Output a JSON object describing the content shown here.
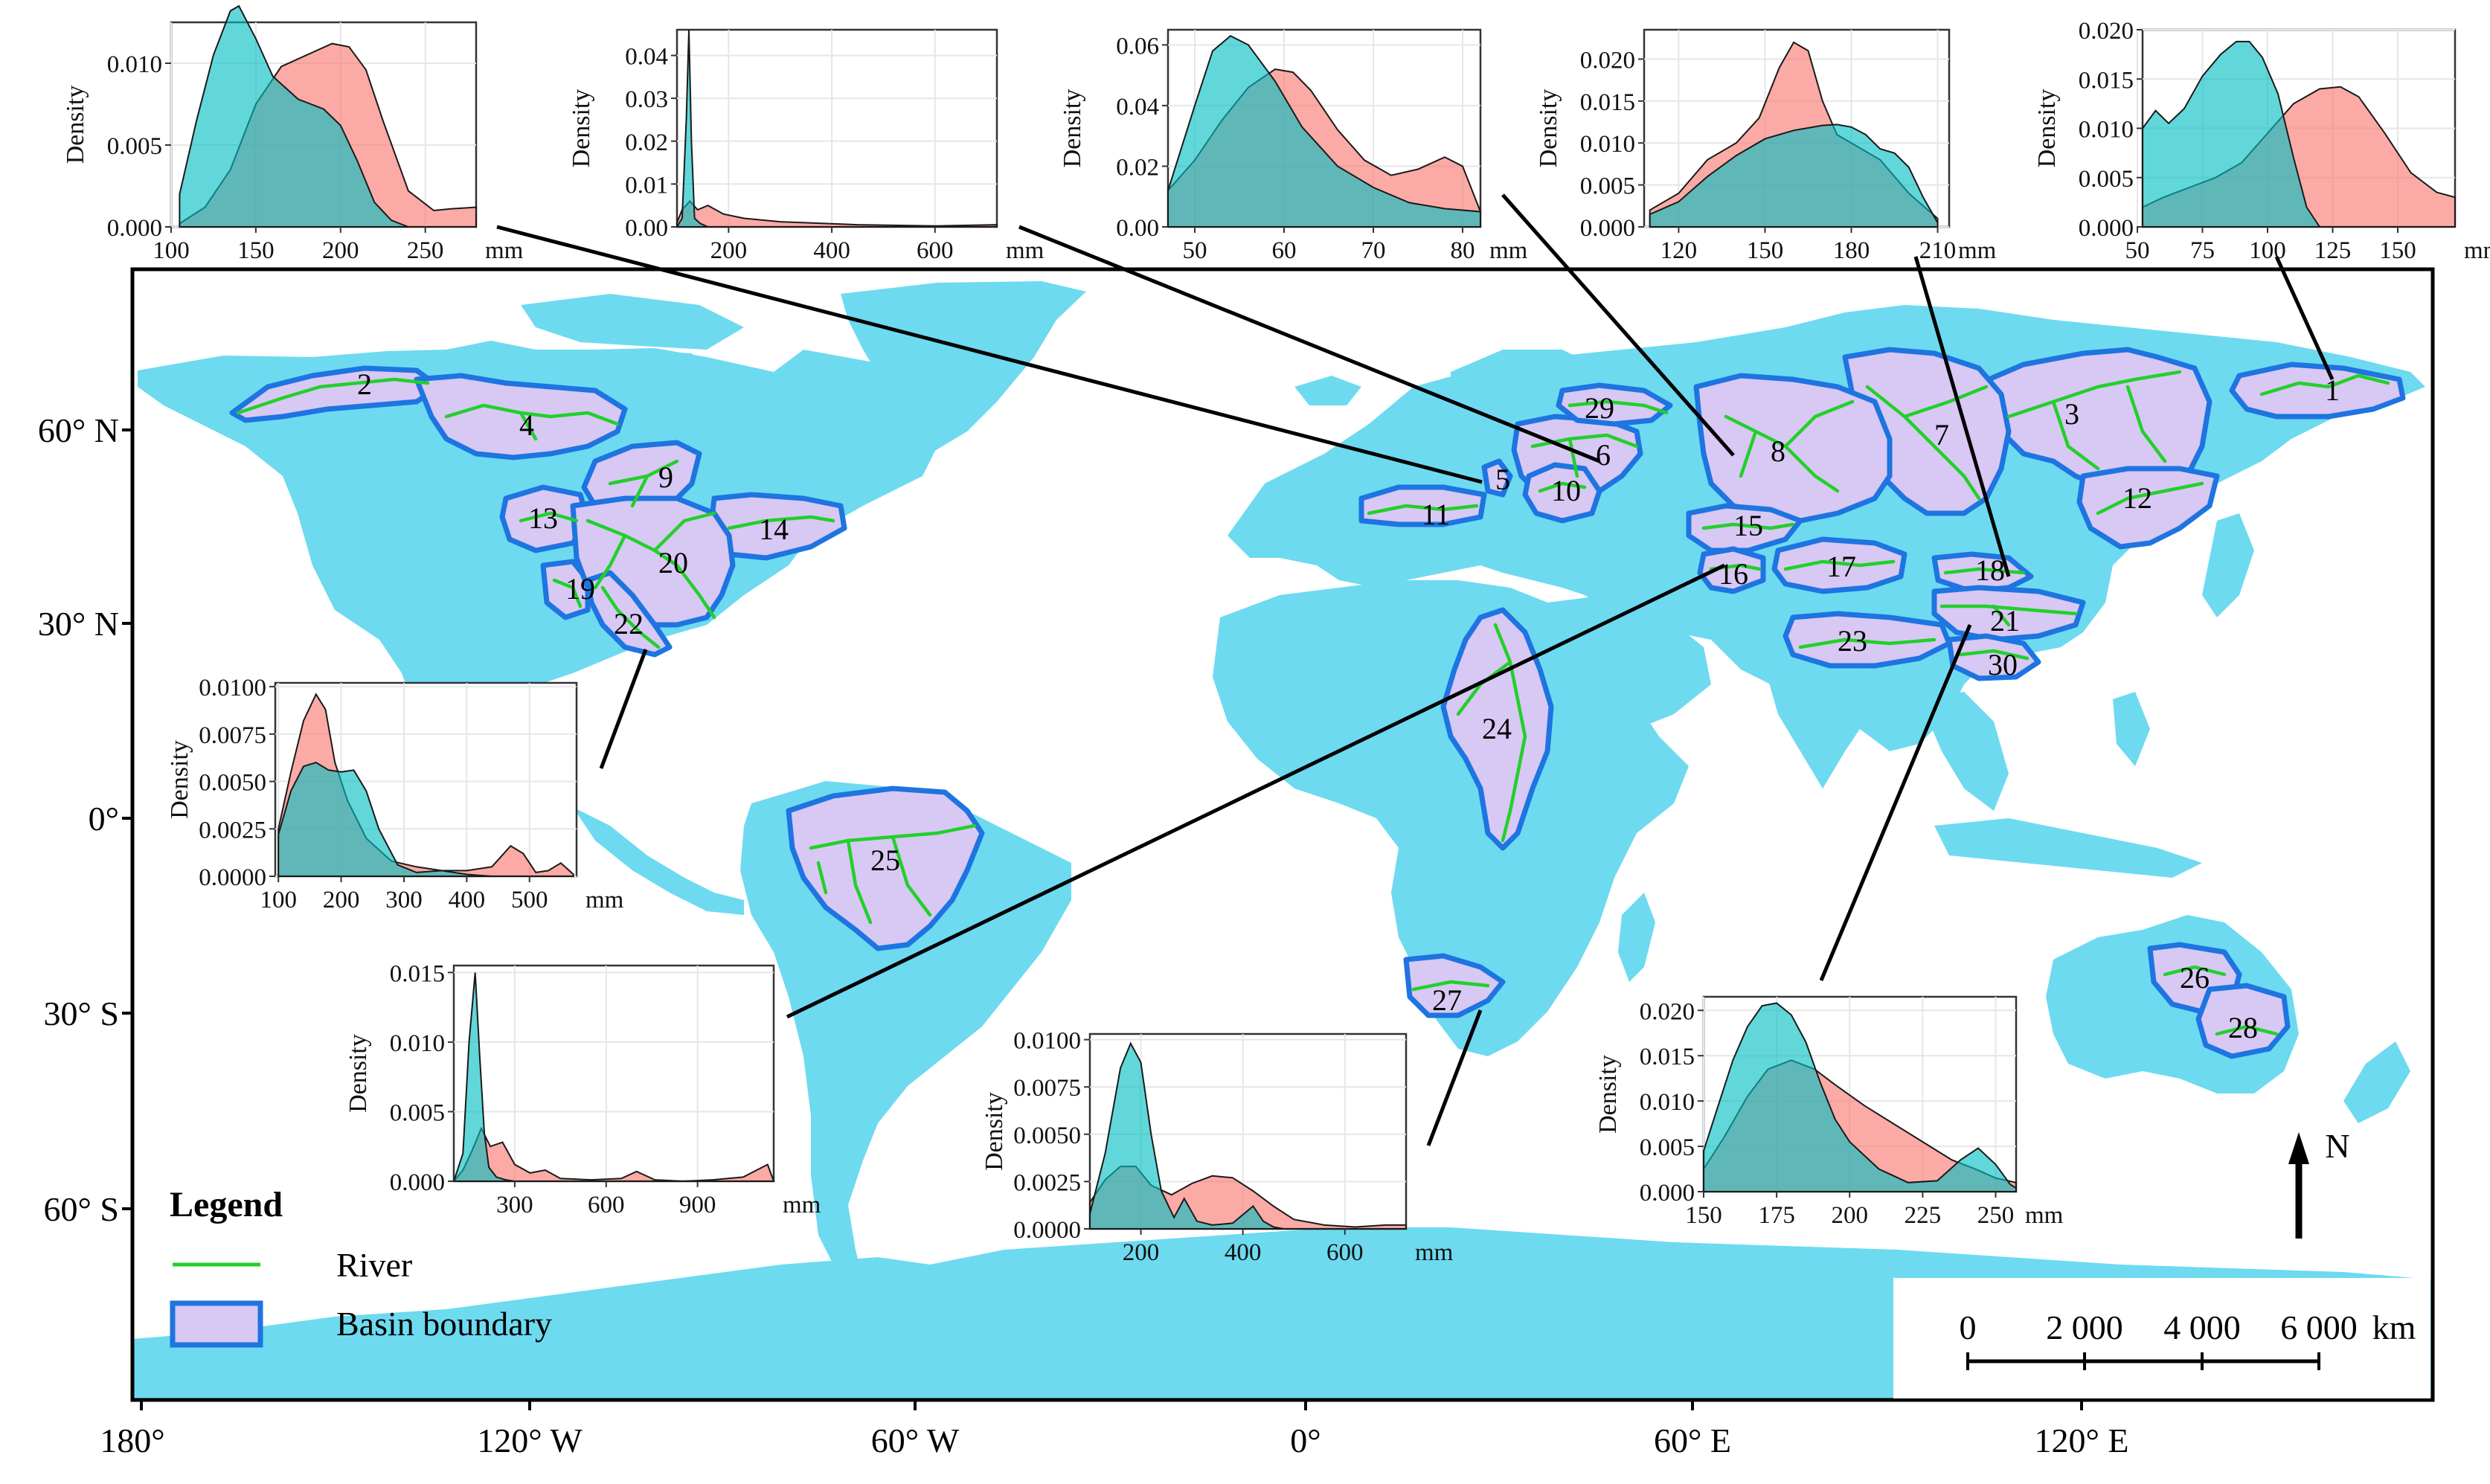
{
  "colors": {
    "ocean": "#ffffff",
    "land": "#6ddaf0",
    "basin_fill": "#d8c8f4",
    "basin_outline": "#1e74e0",
    "river": "#22d02a",
    "density_red": "#f8766d",
    "density_teal": "#00bfc4",
    "connector": "#000000"
  },
  "map": {
    "lon_labels": [
      "180°",
      "120° W",
      "60° W",
      "0°",
      "60° E",
      "120° E"
    ],
    "lat_labels": [
      "60° N",
      "30° N",
      "0°",
      "30° S",
      "60° S"
    ],
    "north_arrow": "N"
  },
  "legend": {
    "title": "Legend",
    "river_label": "River",
    "basin_label": "Basin boundary"
  },
  "scale_bar": {
    "ticks": [
      "0",
      "2 000",
      "4 000",
      "6 000"
    ],
    "unit": "km"
  },
  "basins": [
    {
      "id": "1",
      "label": "1"
    },
    {
      "id": "2",
      "label": "2"
    },
    {
      "id": "3",
      "label": "3"
    },
    {
      "id": "4",
      "label": "4"
    },
    {
      "id": "5",
      "label": "5"
    },
    {
      "id": "6",
      "label": "6"
    },
    {
      "id": "7",
      "label": "7"
    },
    {
      "id": "8",
      "label": "8"
    },
    {
      "id": "9",
      "label": "9"
    },
    {
      "id": "10",
      "label": "10"
    },
    {
      "id": "11",
      "label": "11"
    },
    {
      "id": "12",
      "label": "12"
    },
    {
      "id": "13",
      "label": "13"
    },
    {
      "id": "14",
      "label": "14"
    },
    {
      "id": "15",
      "label": "15"
    },
    {
      "id": "16",
      "label": "16"
    },
    {
      "id": "17",
      "label": "17"
    },
    {
      "id": "18",
      "label": "18"
    },
    {
      "id": "19",
      "label": "19"
    },
    {
      "id": "20",
      "label": "20"
    },
    {
      "id": "21",
      "label": "21"
    },
    {
      "id": "22",
      "label": "22"
    },
    {
      "id": "23",
      "label": "23"
    },
    {
      "id": "24",
      "label": "24"
    },
    {
      "id": "25",
      "label": "25"
    },
    {
      "id": "26",
      "label": "26"
    },
    {
      "id": "27",
      "label": "27"
    },
    {
      "id": "28",
      "label": "28"
    },
    {
      "id": "29",
      "label": "29"
    },
    {
      "id": "30",
      "label": "30"
    }
  ],
  "chart_data": [
    {
      "type": "area",
      "ylabel": "Density",
      "xunit": "mm",
      "xlim": [
        100,
        280
      ],
      "ylim": [
        0,
        0.0125
      ],
      "xticks": [
        "100",
        "150",
        "200",
        "250"
      ],
      "yticks": [
        "0.000",
        "0.005",
        "0.010"
      ],
      "series": [
        {
          "color": "red",
          "x": [
            105,
            120,
            135,
            150,
            165,
            180,
            195,
            205,
            215,
            225,
            240,
            255,
            265,
            280
          ],
          "y": [
            0.0002,
            0.0012,
            0.0035,
            0.0075,
            0.0098,
            0.0105,
            0.0112,
            0.011,
            0.0096,
            0.0065,
            0.0022,
            0.001,
            0.0011,
            0.0012
          ]
        },
        {
          "color": "teal",
          "x": [
            105,
            115,
            125,
            135,
            140,
            150,
            160,
            175,
            190,
            200,
            210,
            220,
            230,
            240
          ],
          "y": [
            0.002,
            0.0065,
            0.0105,
            0.0132,
            0.0135,
            0.0115,
            0.0092,
            0.0078,
            0.0072,
            0.0062,
            0.004,
            0.0015,
            0.0004,
            0.0
          ]
        }
      ]
    },
    {
      "type": "area",
      "ylabel": "Density",
      "xunit": "mm",
      "xlim": [
        100,
        720
      ],
      "ylim": [
        0,
        0.046
      ],
      "xticks": [
        "200",
        "400",
        "600"
      ],
      "yticks": [
        "0.00",
        "0.01",
        "0.02",
        "0.03",
        "0.04"
      ],
      "series": [
        {
          "color": "red",
          "x": [
            100,
            110,
            125,
            140,
            160,
            190,
            230,
            300,
            450,
            600,
            720
          ],
          "y": [
            0.001,
            0.004,
            0.006,
            0.004,
            0.005,
            0.003,
            0.002,
            0.0012,
            0.0005,
            0.0002,
            0.0005
          ]
        },
        {
          "color": "teal",
          "x": [
            100,
            110,
            118,
            123,
            128,
            134,
            145,
            160
          ],
          "y": [
            0.0,
            0.002,
            0.025,
            0.046,
            0.02,
            0.002,
            0.0008,
            0.0
          ]
        }
      ]
    },
    {
      "type": "area",
      "ylabel": "Density",
      "xunit": "mm",
      "xlim": [
        47,
        82
      ],
      "ylim": [
        0,
        0.065
      ],
      "xticks": [
        "50",
        "60",
        "70",
        "80"
      ],
      "yticks": [
        "0.00",
        "0.02",
        "0.04",
        "0.06"
      ],
      "series": [
        {
          "color": "red",
          "x": [
            47,
            50,
            53,
            56,
            59,
            61,
            63,
            66,
            69,
            72,
            75,
            78,
            80,
            82
          ],
          "y": [
            0.012,
            0.022,
            0.035,
            0.046,
            0.052,
            0.051,
            0.045,
            0.032,
            0.022,
            0.017,
            0.019,
            0.023,
            0.02,
            0.005
          ]
        },
        {
          "color": "teal",
          "x": [
            47,
            50,
            52,
            54,
            56,
            59,
            62,
            66,
            70,
            74,
            78,
            82
          ],
          "y": [
            0.012,
            0.04,
            0.058,
            0.063,
            0.06,
            0.048,
            0.033,
            0.02,
            0.013,
            0.008,
            0.006,
            0.005
          ]
        }
      ]
    },
    {
      "type": "area",
      "ylabel": "Density",
      "xunit": "mm",
      "xlim": [
        108,
        214
      ],
      "ylim": [
        0,
        0.0235
      ],
      "xticks": [
        "120",
        "150",
        "180",
        "210"
      ],
      "yticks": [
        "0.000",
        "0.005",
        "0.010",
        "0.015",
        "0.020"
      ],
      "series": [
        {
          "color": "red",
          "x": [
            110,
            120,
            130,
            140,
            148,
            155,
            160,
            165,
            170,
            175,
            180,
            190,
            200,
            210
          ],
          "y": [
            0.002,
            0.004,
            0.008,
            0.01,
            0.013,
            0.019,
            0.022,
            0.021,
            0.015,
            0.011,
            0.01,
            0.008,
            0.004,
            0.001
          ]
        },
        {
          "color": "teal",
          "x": [
            110,
            120,
            130,
            140,
            150,
            160,
            170,
            175,
            180,
            185,
            190,
            195,
            200,
            205,
            210
          ],
          "y": [
            0.0015,
            0.003,
            0.006,
            0.0085,
            0.0105,
            0.0115,
            0.0121,
            0.0122,
            0.0119,
            0.011,
            0.0093,
            0.0088,
            0.0071,
            0.0035,
            0.0005
          ]
        }
      ]
    },
    {
      "type": "area",
      "ylabel": "Density",
      "xunit": "mm",
      "xlim": [
        52,
        172
      ],
      "ylim": [
        0,
        0.02
      ],
      "xticks": [
        "50",
        "75",
        "100",
        "125",
        "150"
      ],
      "yticks": [
        "0.000",
        "0.005",
        "0.010",
        "0.015",
        "0.020"
      ],
      "series": [
        {
          "color": "red",
          "x": [
            52,
            60,
            70,
            80,
            90,
            100,
            110,
            120,
            128,
            135,
            145,
            155,
            165,
            172
          ],
          "y": [
            0.002,
            0.003,
            0.004,
            0.005,
            0.0065,
            0.0095,
            0.0125,
            0.014,
            0.0142,
            0.0132,
            0.0095,
            0.0055,
            0.0035,
            0.003
          ]
        },
        {
          "color": "teal",
          "x": [
            52,
            57,
            62,
            68,
            75,
            82,
            88,
            93,
            98,
            104,
            110,
            115,
            120
          ],
          "y": [
            0.01,
            0.0118,
            0.0105,
            0.012,
            0.0153,
            0.0175,
            0.0188,
            0.0188,
            0.0172,
            0.0135,
            0.007,
            0.002,
            0.0
          ]
        }
      ]
    },
    {
      "type": "area",
      "ylabel": "Density",
      "xunit": "mm",
      "xlim": [
        95,
        575
      ],
      "ylim": [
        0,
        0.0102
      ],
      "xticks": [
        "100",
        "200",
        "300",
        "400",
        "500"
      ],
      "yticks": [
        "0.0000",
        "0.0025",
        "0.0050",
        "0.0075",
        "0.0100"
      ],
      "series": [
        {
          "color": "red",
          "x": [
            100,
            120,
            140,
            160,
            175,
            190,
            210,
            240,
            280,
            320,
            360,
            400,
            440,
            470,
            490,
            510,
            530,
            550,
            570
          ],
          "y": [
            0.0025,
            0.0055,
            0.0082,
            0.0096,
            0.0088,
            0.006,
            0.004,
            0.002,
            0.0008,
            0.0005,
            0.0003,
            0.0003,
            0.0005,
            0.0016,
            0.0012,
            0.0002,
            0.0003,
            0.0007,
            0.0001
          ]
        },
        {
          "color": "teal",
          "x": [
            100,
            120,
            140,
            160,
            180,
            200,
            220,
            240,
            260,
            290,
            320,
            360,
            400,
            440
          ],
          "y": [
            0.0022,
            0.0045,
            0.0058,
            0.006,
            0.0056,
            0.0055,
            0.0056,
            0.0045,
            0.0025,
            0.0006,
            0.0002,
            0.0003,
            0.0001,
            0.0
          ]
        }
      ]
    },
    {
      "type": "area",
      "ylabel": "Density",
      "xunit": "mm",
      "xlim": [
        100,
        1150
      ],
      "ylim": [
        0,
        0.0155
      ],
      "xticks": [
        "300",
        "600",
        "900"
      ],
      "yticks": [
        "0.000",
        "0.005",
        "0.010",
        "0.015"
      ],
      "series": [
        {
          "color": "red",
          "x": [
            100,
            130,
            160,
            190,
            220,
            260,
            300,
            350,
            400,
            450,
            550,
            650,
            700,
            760,
            850,
            950,
            1050,
            1130,
            1150
          ],
          "y": [
            0.0,
            0.0008,
            0.0022,
            0.0038,
            0.0025,
            0.0028,
            0.0012,
            0.0006,
            0.0008,
            0.0002,
            0.0001,
            0.0002,
            0.0007,
            0.0001,
            0.0,
            0.0001,
            0.0003,
            0.0012,
            0.0
          ]
        },
        {
          "color": "teal",
          "x": [
            100,
            130,
            150,
            170,
            185,
            200,
            215,
            240,
            270,
            300
          ],
          "y": [
            0.0,
            0.002,
            0.01,
            0.015,
            0.009,
            0.0035,
            0.001,
            0.0003,
            0.0001,
            0.0
          ]
        }
      ]
    },
    {
      "type": "area",
      "ylabel": "Density",
      "xunit": "mm",
      "xlim": [
        100,
        720
      ],
      "ylim": [
        0,
        0.0103
      ],
      "xticks": [
        "200",
        "400",
        "600"
      ],
      "yticks": [
        "0.0000",
        "0.0025",
        "0.0050",
        "0.0075",
        "0.0100"
      ],
      "series": [
        {
          "color": "red",
          "x": [
            100,
            130,
            160,
            190,
            220,
            260,
            300,
            340,
            380,
            420,
            460,
            500,
            560,
            620,
            680,
            720
          ],
          "y": [
            0.0014,
            0.0026,
            0.0033,
            0.0033,
            0.0023,
            0.0018,
            0.0024,
            0.0028,
            0.0027,
            0.002,
            0.0012,
            0.0005,
            0.0002,
            0.0001,
            0.0002,
            0.0002
          ]
        },
        {
          "color": "teal",
          "x": [
            100,
            130,
            160,
            180,
            200,
            220,
            240,
            265,
            285,
            310,
            340,
            380,
            420,
            440,
            460,
            480
          ],
          "y": [
            0.0008,
            0.004,
            0.0085,
            0.0098,
            0.0088,
            0.005,
            0.002,
            0.0006,
            0.0016,
            0.0004,
            0.0002,
            0.0003,
            0.0012,
            0.0004,
            0.0001,
            0.0
          ]
        }
      ]
    },
    {
      "type": "area",
      "ylabel": "Density",
      "xunit": "mm",
      "xlim": [
        150,
        257
      ],
      "ylim": [
        0,
        0.0215
      ],
      "xticks": [
        "150",
        "175",
        "200",
        "225",
        "250"
      ],
      "yticks": [
        "0.000",
        "0.005",
        "0.010",
        "0.015",
        "0.020"
      ],
      "series": [
        {
          "color": "red",
          "x": [
            150,
            157,
            165,
            172,
            180,
            188,
            195,
            205,
            215,
            225,
            235,
            243,
            250,
            257
          ],
          "y": [
            0.0025,
            0.006,
            0.0105,
            0.0135,
            0.0145,
            0.0135,
            0.0118,
            0.0095,
            0.0075,
            0.0055,
            0.0035,
            0.0025,
            0.0015,
            0.001
          ]
        },
        {
          "color": "teal",
          "x": [
            150,
            155,
            160,
            165,
            170,
            175,
            180,
            185,
            190,
            195,
            200,
            210,
            220,
            230,
            238,
            244,
            250,
            255,
            257
          ],
          "y": [
            0.0045,
            0.0095,
            0.0145,
            0.0182,
            0.0205,
            0.0208,
            0.0195,
            0.0165,
            0.012,
            0.008,
            0.0055,
            0.0025,
            0.001,
            0.0012,
            0.0035,
            0.0048,
            0.003,
            0.0008,
            0.0004
          ]
        }
      ]
    }
  ]
}
